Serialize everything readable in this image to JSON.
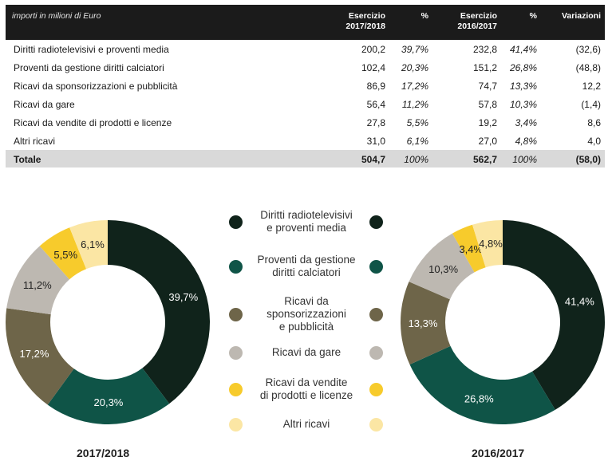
{
  "table": {
    "caption": "importi in milioni di Euro",
    "headers": [
      "Esercizio\n2017/2018",
      "%",
      "Esercizio\n2016/2017",
      "%",
      "Variazioni"
    ],
    "rows": [
      {
        "label": "Diritti radiotelevisivi e proventi media",
        "v1": "200,2",
        "p1": "39,7%",
        "v2": "232,8",
        "p2": "41,4%",
        "var": "(32,6)"
      },
      {
        "label": "Proventi da gestione diritti calciatori",
        "v1": "102,4",
        "p1": "20,3%",
        "v2": "151,2",
        "p2": "26,8%",
        "var": "(48,8)"
      },
      {
        "label": "Ricavi da sponsorizzazioni e pubblicità",
        "v1": "86,9",
        "p1": "17,2%",
        "v2": "74,7",
        "p2": "13,3%",
        "var": "12,2"
      },
      {
        "label": "Ricavi da gare",
        "v1": "56,4",
        "p1": "11,2%",
        "v2": "57,8",
        "p2": "10,3%",
        "var": "(1,4)"
      },
      {
        "label": "Ricavi da vendite di prodotti e licenze",
        "v1": "27,8",
        "p1": "5,5%",
        "v2": "19,2",
        "p2": "3,4%",
        "var": "8,6"
      },
      {
        "label": "Altri ricavi",
        "v1": "31,0",
        "p1": "6,1%",
        "v2": "27,0",
        "p2": "4,8%",
        "var": "4,0"
      }
    ],
    "total": {
      "label": "Totale",
      "v1": "504,7",
      "p1": "100%",
      "v2": "562,7",
      "p2": "100%",
      "var": "(58,0)"
    }
  },
  "colors": [
    "#10231b",
    "#0f5447",
    "#6e6549",
    "#bdb8b1",
    "#f7cb2c",
    "#fbe6a4"
  ],
  "chart_data": [
    {
      "type": "pie",
      "title": "2017/2018",
      "categories": [
        "Diritti radiotelevisivi e proventi media",
        "Proventi da gestione diritti calciatori",
        "Ricavi da sponsorizzazioni e pubblicità",
        "Ricavi da gare",
        "Ricavi da vendite di prodotti e licenze",
        "Altri ricavi"
      ],
      "values": [
        39.7,
        20.3,
        17.2,
        11.2,
        5.5,
        6.1
      ],
      "labels": [
        "39,7%",
        "20,3%",
        "17,2%",
        "11,2%",
        "5,5%",
        "6,1%"
      ],
      "legend": "center"
    },
    {
      "type": "pie",
      "title": "2016/2017",
      "categories": [
        "Diritti radiotelevisivi e proventi media",
        "Proventi da gestione diritti calciatori",
        "Ricavi da sponsorizzazioni e pubblicità",
        "Ricavi da gare",
        "Ricavi da vendite di prodotti e licenze",
        "Altri ricavi"
      ],
      "values": [
        41.4,
        26.8,
        13.3,
        10.3,
        3.4,
        4.8
      ],
      "labels": [
        "41,4%",
        "26,8%",
        "13,3%",
        "10,3%",
        "3,4%",
        "4,8%"
      ],
      "legend": "center"
    }
  ],
  "legend": [
    "Diritti radiotelevisivi\ne proventi media",
    "Proventi da gestione\ndiritti calciatori",
    "Ricavi da\nsponsorizzazioni\ne pubblicità",
    "Ricavi da gare",
    "Ricavi da vendite\ndi prodotti e licenze",
    "Altri ricavi"
  ]
}
